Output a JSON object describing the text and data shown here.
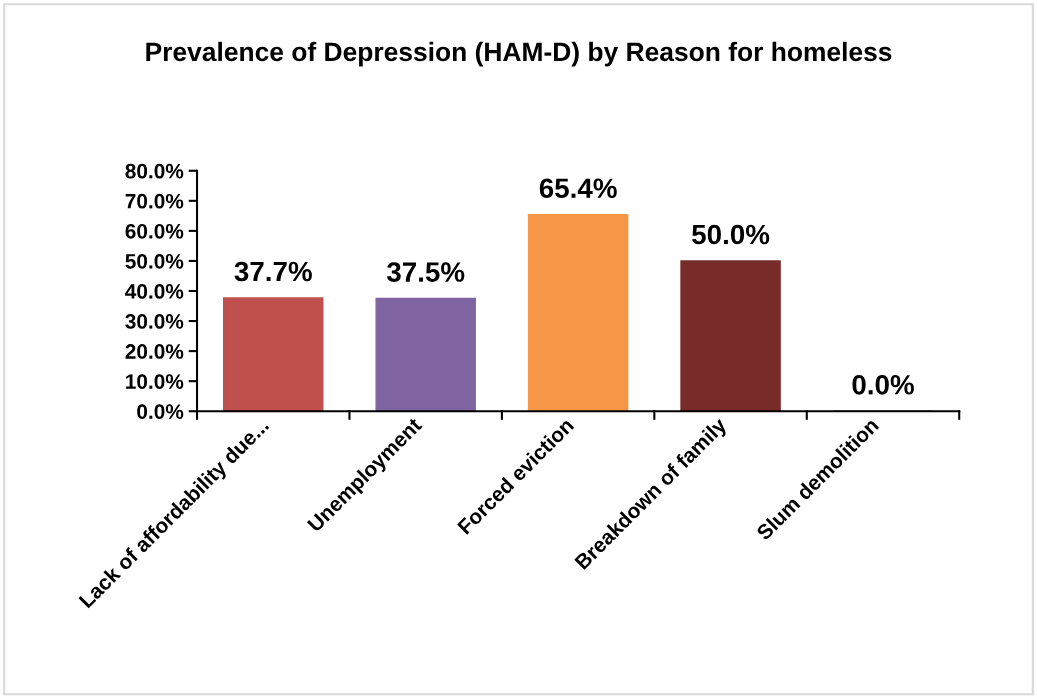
{
  "chart_data": {
    "type": "bar",
    "title": "Prevalence of Depression (HAM-D) by Reason for homeless",
    "categories": [
      "Lack of affordability due...",
      "Unemployment",
      "Forced eviction",
      "Breakdown of family",
      "Slum demolition"
    ],
    "values": [
      37.7,
      37.5,
      65.4,
      50.0,
      0.0
    ],
    "value_labels": [
      "37.7%",
      "37.5%",
      "65.4%",
      "50.0%",
      "0.0%"
    ],
    "colors": [
      "#c0504d",
      "#8064a2",
      "#f79646",
      "#772c2a",
      "#3f3151"
    ],
    "ylim": [
      0,
      80
    ],
    "yticks": [
      {
        "value": 0,
        "label": "0.0%"
      },
      {
        "value": 10,
        "label": "10.0%"
      },
      {
        "value": 20,
        "label": "20.0%"
      },
      {
        "value": 30,
        "label": "30.0%"
      },
      {
        "value": 40,
        "label": "40.0%"
      },
      {
        "value": 50,
        "label": "50.0%"
      },
      {
        "value": 60,
        "label": "60.0%"
      },
      {
        "value": 70,
        "label": "70.0%"
      },
      {
        "value": 80,
        "label": "80.0%"
      }
    ],
    "grid": false,
    "legend": false
  }
}
